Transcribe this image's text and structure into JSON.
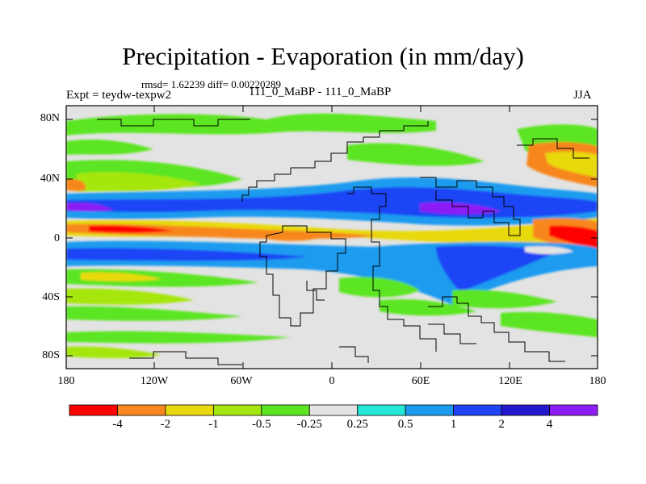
{
  "title": "Precipitation - Evaporation (in mm/day)",
  "stats": "rmsd= 1.62239 diff= 0.00220289",
  "expt": "Expt = teydw-texpw2",
  "experiment_name": "111_0_MaBP - 111_0_MaBP",
  "season": "JJA",
  "lat_ticks": [
    "80N",
    "40N",
    "0",
    "40S",
    "80S"
  ],
  "lon_ticks": [
    "180",
    "120W",
    "60W",
    "0",
    "60E",
    "120E",
    "180"
  ],
  "colorbar": {
    "labels": [
      "-4",
      "-2",
      "-1",
      "-0.5",
      "-0.25",
      "0.25",
      "0.5",
      "1",
      "2",
      "4"
    ],
    "colors": [
      "#ff0000",
      "#f7871e",
      "#e8d90e",
      "#a5e60f",
      "#5ce521",
      "#e3e3e3",
      "#23e8d8",
      "#1b9bef",
      "#1e44f5",
      "#2318ce",
      "#8c1ef5"
    ]
  }
}
